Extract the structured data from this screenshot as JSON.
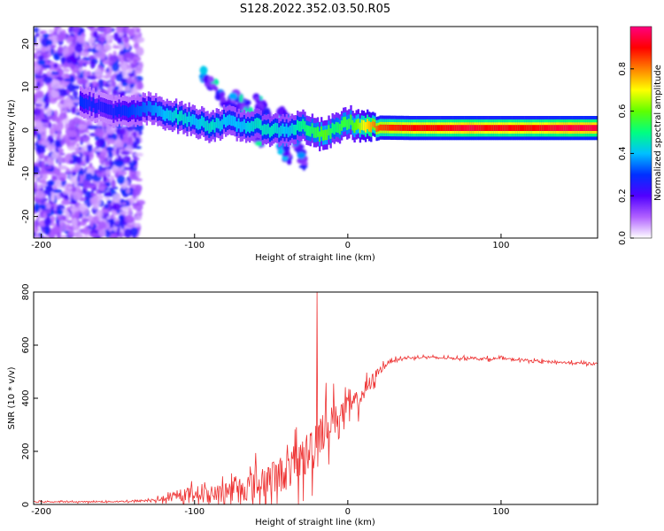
{
  "title": "S128.2022.352.03.50.R05",
  "chart_data": [
    {
      "type": "heatmap",
      "xlabel": "Height of straight line (km)",
      "ylabel": "Frequency (Hz)",
      "xlim": [
        -205,
        163
      ],
      "ylim": [
        -25,
        24
      ],
      "x_ticks": [
        -200,
        -100,
        0,
        100
      ],
      "y_ticks": [
        -20,
        -10,
        0,
        10,
        20
      ],
      "colorbar": {
        "label": "Normalized spectral amplitude",
        "range": [
          0.0,
          1.0
        ],
        "ticks": [
          0.0,
          0.2,
          0.4,
          0.6,
          0.8
        ],
        "colors": [
          "#ffffff",
          "#b060ff",
          "#5000ff",
          "#0030ff",
          "#00c0ff",
          "#00ff80",
          "#60ff00",
          "#ffff00",
          "#ff8000",
          "#ff0000",
          "#ff0080"
        ]
      },
      "ridge": {
        "x": [
          -175,
          -160,
          -145,
          -130,
          -120,
          -110,
          -100,
          -90,
          -80,
          -70,
          -60,
          -50,
          -40,
          -30,
          -20,
          -15,
          -10,
          -5,
          0,
          5,
          10,
          20,
          40,
          60,
          80,
          90,
          100,
          110,
          120,
          140,
          163
        ],
        "y": [
          7,
          5,
          4,
          5,
          4,
          3,
          2,
          1,
          2,
          1,
          1,
          0,
          0,
          1,
          -1,
          -1,
          0,
          1,
          2,
          1,
          1,
          0.6,
          0.5,
          0.5,
          0.5,
          0.5,
          0.5,
          0.5,
          0.5,
          0.5,
          0.5
        ],
        "amplitude": [
          0.3,
          0.25,
          0.3,
          0.35,
          0.4,
          0.45,
          0.4,
          0.45,
          0.4,
          0.4,
          0.45,
          0.45,
          0.4,
          0.5,
          0.55,
          0.6,
          0.5,
          0.55,
          0.55,
          0.6,
          0.7,
          0.85,
          0.9,
          0.9,
          0.95,
          0.9,
          0.92,
          0.9,
          0.9,
          0.95,
          0.95
        ]
      },
      "branches": [
        {
          "x": [
            -95,
            -85,
            -75,
            -65,
            -55
          ],
          "y": [
            13,
            9,
            5,
            1,
            -3
          ]
        },
        {
          "x": [
            -75,
            -65,
            -55,
            -45,
            -38
          ],
          "y": [
            8,
            5,
            1,
            -3,
            -7
          ]
        },
        {
          "x": [
            -60,
            -52,
            -44,
            -38
          ],
          "y": [
            7,
            3,
            -1,
            -4
          ]
        },
        {
          "x": [
            -45,
            -38,
            -32,
            -28
          ],
          "y": [
            5,
            1,
            -4,
            -8
          ]
        }
      ]
    },
    {
      "type": "line",
      "xlabel": "Height of straight line (km)",
      "ylabel": "SNR (10 * v/v)",
      "xlim": [
        -205,
        163
      ],
      "ylim": [
        0,
        800
      ],
      "x_ticks": [
        -200,
        -100,
        0,
        100
      ],
      "y_ticks": [
        0,
        200,
        400,
        600,
        800
      ],
      "series": [
        {
          "color": "#ee3333",
          "envelope_x": [
            -205,
            -180,
            -160,
            -140,
            -130,
            -120,
            -110,
            -100,
            -90,
            -80,
            -70,
            -60,
            -50,
            -40,
            -35,
            -30,
            -25,
            -22,
            -20,
            -18,
            -15,
            -10,
            -5,
            0,
            5,
            10,
            15,
            20,
            25,
            30,
            40,
            50,
            60,
            70,
            80,
            90,
            100,
            110,
            120,
            130,
            140,
            150,
            163
          ],
          "envelope_base": [
            10,
            10,
            10,
            12,
            15,
            20,
            30,
            45,
            40,
            50,
            60,
            75,
            95,
            125,
            145,
            170,
            195,
            230,
            260,
            280,
            300,
            320,
            340,
            360,
            380,
            420,
            460,
            500,
            530,
            545,
            552,
            555,
            552,
            550,
            552,
            548,
            550,
            545,
            542,
            538,
            535,
            532,
            530
          ],
          "envelope_amp": [
            5,
            5,
            5,
            8,
            10,
            20,
            40,
            60,
            50,
            80,
            110,
            130,
            140,
            160,
            170,
            180,
            200,
            220,
            220,
            200,
            180,
            150,
            120,
            100,
            90,
            80,
            60,
            40,
            20,
            12,
            10,
            10,
            10,
            10,
            10,
            12,
            10,
            10,
            10,
            10,
            10,
            10,
            10
          ],
          "spike": {
            "x": -20,
            "y": 800
          }
        }
      ]
    }
  ]
}
